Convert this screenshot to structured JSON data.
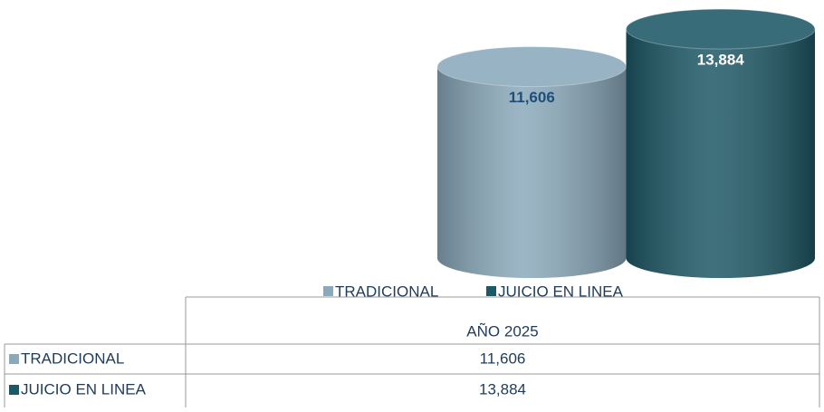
{
  "chart_data": {
    "type": "bar3d",
    "categories": [
      "AÑO 2025"
    ],
    "series": [
      {
        "name": "TRADICIONAL",
        "color": "#8aa9bb",
        "label_color": "#1f4e79",
        "values": [
          11606
        ],
        "value_labels": [
          "11,606"
        ]
      },
      {
        "name": "JUICIO EN LINEA",
        "color": "#1d5866",
        "label_color": "#ffffff",
        "values": [
          13884
        ],
        "value_labels": [
          "13,884"
        ]
      }
    ],
    "ylim": [
      0,
      14000
    ]
  }
}
